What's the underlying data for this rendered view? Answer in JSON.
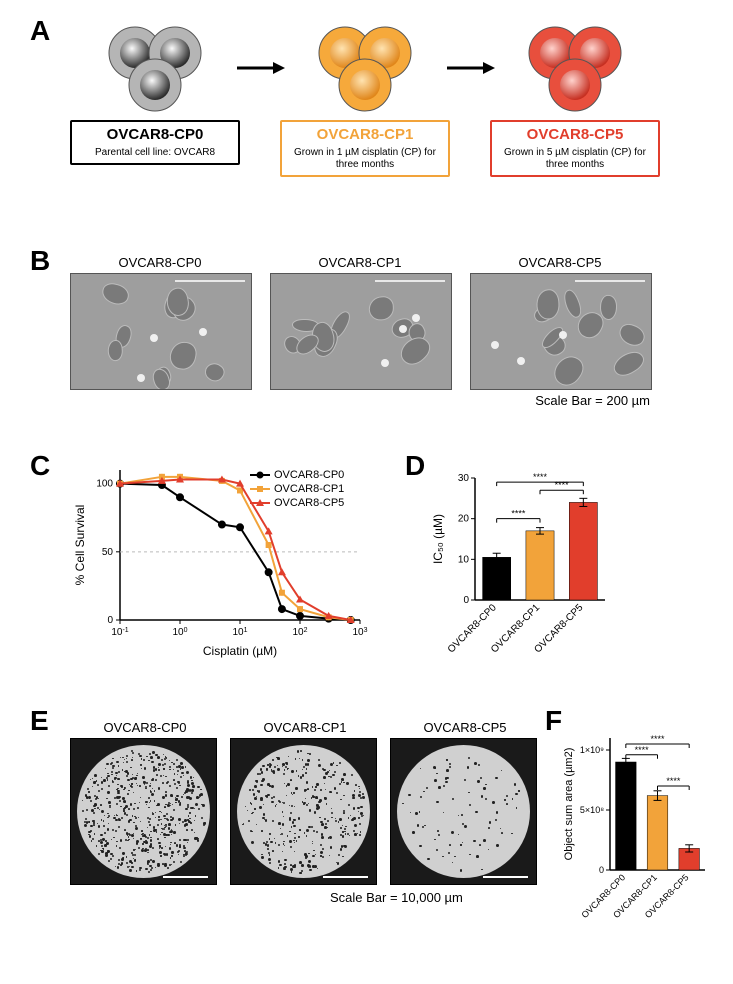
{
  "panels": {
    "A": {
      "label": "A",
      "groups": [
        {
          "name": "OVCAR8-CP0",
          "subtitle": "Parental cell line: OVCAR8",
          "outer_color": "#b5b5b5",
          "inner_stops": [
            "#fafafa",
            "#2b2b2b"
          ],
          "box_border": "#000000",
          "title_color": "#000000"
        },
        {
          "name": "OVCAR8-CP1",
          "subtitle": "Grown in 1 µM cisplatin (CP) for three months",
          "outer_color": "#f6a93b",
          "inner_stops": [
            "#ffe3b0",
            "#e0861a"
          ],
          "box_border": "#f2a33a",
          "title_color": "#f2a33a"
        },
        {
          "name": "OVCAR8-CP5",
          "subtitle": "Grown in 5 µM cisplatin (CP) for three months",
          "outer_color": "#e84f3d",
          "inner_stops": [
            "#ffd2cc",
            "#c62f21"
          ],
          "box_border": "#e13e2c",
          "title_color": "#e13e2c"
        }
      ],
      "arrow_color": "#000000"
    },
    "B": {
      "label": "B",
      "images": [
        "OVCAR8-CP0",
        "OVCAR8-CP1",
        "OVCAR8-CP5"
      ],
      "scale_text": "Scale Bar = 200 µm"
    },
    "C": {
      "label": "C",
      "type": "line",
      "xlabel": "Cisplatin (µM)",
      "ylabel": "% Cell Survival",
      "xscale": "log",
      "xlim": [
        0.1,
        1000
      ],
      "ylim": [
        0,
        110
      ],
      "yticks": [
        0,
        50,
        100
      ],
      "xticks_log": [
        -1,
        0,
        1,
        2,
        3
      ],
      "ref_line_y": 50,
      "series": [
        {
          "name": "OVCAR8-CP0",
          "color": "#000000",
          "marker": "circle",
          "x": [
            0.1,
            0.5,
            1,
            5,
            10,
            30,
            50,
            100,
            300,
            700
          ],
          "y": [
            100,
            99,
            90,
            70,
            68,
            35,
            8,
            3,
            1,
            0
          ]
        },
        {
          "name": "OVCAR8-CP1",
          "color": "#f2a33a",
          "marker": "square",
          "x": [
            0.1,
            0.5,
            1,
            5,
            10,
            30,
            50,
            100,
            300,
            700
          ],
          "y": [
            100,
            105,
            105,
            102,
            95,
            55,
            20,
            8,
            2,
            0
          ]
        },
        {
          "name": "OVCAR8-CP5",
          "color": "#e13e2c",
          "marker": "triangle",
          "x": [
            0.1,
            0.5,
            1,
            5,
            10,
            30,
            50,
            100,
            300,
            700
          ],
          "y": [
            100,
            102,
            103,
            103,
            100,
            65,
            35,
            15,
            3,
            0
          ]
        }
      ],
      "legend_fontsize": 11,
      "label_fontsize": 12,
      "tick_fontsize": 10,
      "grid_color": "#bbbbbb",
      "background_color": "#ffffff"
    },
    "D": {
      "label": "D",
      "type": "bar",
      "ylabel": "IC₅₀ (µM)",
      "categories": [
        "OVCAR8-CP0",
        "OVCAR8-CP1",
        "OVCAR8-CP5"
      ],
      "values": [
        10.5,
        17,
        24
      ],
      "errors": [
        1.0,
        0.8,
        1.0
      ],
      "bar_colors": [
        "#000000",
        "#f2a33a",
        "#e13e2c"
      ],
      "ylim": [
        0,
        30
      ],
      "yticks": [
        0,
        10,
        20,
        30
      ],
      "sig_markers": [
        {
          "from": 0,
          "to": 1,
          "y": 20,
          "label": "****"
        },
        {
          "from": 1,
          "to": 2,
          "y": 27,
          "label": "****"
        },
        {
          "from": 0,
          "to": 2,
          "y": 29,
          "label": "****"
        }
      ],
      "bar_width": 0.65,
      "label_fontsize": 12,
      "tick_fontsize": 10
    },
    "E": {
      "label": "E",
      "images": [
        "OVCAR8-CP0",
        "OVCAR8-CP1",
        "OVCAR8-CP5"
      ],
      "densities": [
        1.0,
        0.6,
        0.15
      ],
      "scale_text": "Scale Bar = 10,000 µm"
    },
    "F": {
      "label": "F",
      "type": "bar",
      "ylabel": "Object sum area (µm2)",
      "categories": [
        "OVCAR8-CP0",
        "OVCAR8-CP1",
        "OVCAR8-CP5"
      ],
      "values": [
        900000000.0,
        620000000.0,
        180000000.0
      ],
      "errors": [
        30000000.0,
        40000000.0,
        30000000.0
      ],
      "bar_colors": [
        "#000000",
        "#f2a33a",
        "#e13e2c"
      ],
      "ylim": [
        0,
        1100000000.0
      ],
      "yticks": [
        0,
        500000000.0,
        1000000000.0
      ],
      "ytick_labels": [
        "0",
        "5×10⁸",
        "1×10⁹"
      ],
      "sig_markers": [
        {
          "from": 0,
          "to": 1,
          "y": 960000000.0,
          "label": "****"
        },
        {
          "from": 1,
          "to": 2,
          "y": 700000000.0,
          "label": "****"
        },
        {
          "from": 0,
          "to": 2,
          "y": 1050000000.0,
          "label": "****"
        }
      ],
      "bar_width": 0.65,
      "label_fontsize": 11,
      "tick_fontsize": 9
    }
  }
}
